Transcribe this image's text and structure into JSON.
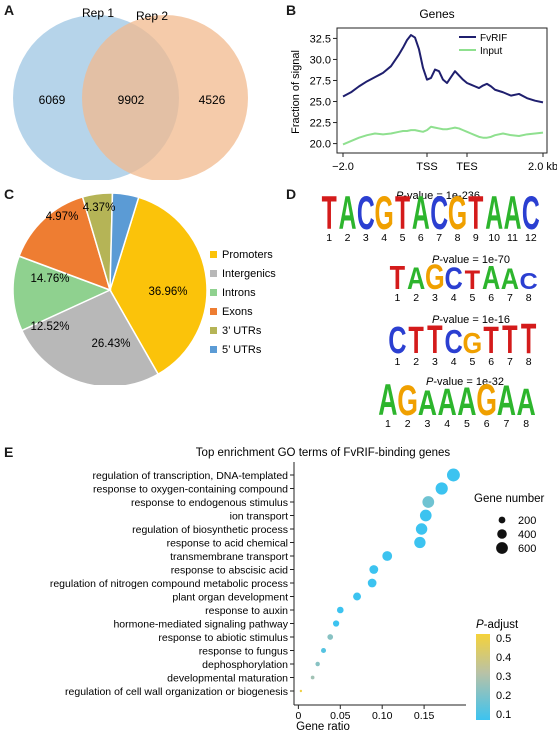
{
  "panels": {
    "a": "A",
    "b": "B",
    "c": "C",
    "d": "D",
    "e": "E"
  },
  "venn": {
    "label1": "Rep 1",
    "label2": "Rep 2",
    "only1": "6069",
    "both": "9902",
    "only2": "4526",
    "color1": "#a9cce6",
    "color2": "#f2b98d"
  },
  "chart_data": [
    {
      "type": "area",
      "subtype": "venn",
      "sets": [
        "Rep 1",
        "Rep 2"
      ],
      "counts": {
        "Rep 1 only": 6069,
        "Rep 1 & Rep 2": 9902,
        "Rep 2 only": 4526
      }
    },
    {
      "type": "line",
      "title": "Genes",
      "ylabel": "Fraction of signal",
      "xticks": [
        "−2.0",
        "TSS",
        "TES",
        "2.0 kb"
      ],
      "yticks": [
        20.0,
        22.5,
        25.0,
        27.5,
        30.0,
        32.5
      ],
      "ylim": [
        19.0,
        33.5
      ],
      "legend_position": "top-right",
      "x": [
        0,
        0.04,
        0.08,
        0.12,
        0.16,
        0.2,
        0.24,
        0.28,
        0.3,
        0.32,
        0.34,
        0.36,
        0.38,
        0.4,
        0.42,
        0.44,
        0.46,
        0.48,
        0.5,
        0.52,
        0.54,
        0.56,
        0.58,
        0.6,
        0.62,
        0.64,
        0.66,
        0.68,
        0.7,
        0.72,
        0.74,
        0.76,
        0.8,
        0.84,
        0.88,
        0.92,
        0.96,
        1.0
      ],
      "x_note": "",
      "series": [
        {
          "name": "FvRIF",
          "color": "#1f1f6e",
          "values": [
            25.6,
            26.1,
            26.8,
            27.4,
            27.9,
            28.4,
            29.2,
            30.6,
            31.4,
            32.3,
            32.9,
            32.6,
            31.2,
            29.0,
            27.6,
            27.8,
            28.8,
            28.6,
            27.6,
            27.2,
            27.9,
            28.6,
            28.1,
            27.6,
            27.2,
            27.0,
            26.8,
            26.6,
            26.9,
            27.1,
            26.8,
            26.4,
            26.1,
            25.7,
            25.9,
            25.4,
            25.1,
            24.9
          ]
        },
        {
          "name": "Input",
          "color": "#8fe08f",
          "values": [
            19.9,
            20.3,
            20.7,
            21.0,
            21.2,
            21.1,
            21.2,
            21.4,
            21.5,
            21.5,
            21.6,
            21.6,
            21.5,
            21.4,
            21.6,
            22.0,
            21.9,
            21.8,
            21.7,
            21.7,
            21.8,
            21.9,
            21.8,
            21.6,
            21.4,
            21.2,
            21.0,
            20.8,
            20.7,
            20.7,
            20.8,
            21.0,
            21.2,
            21.0,
            20.9,
            21.1,
            21.2,
            21.3
          ]
        }
      ]
    },
    {
      "type": "pie",
      "slices": [
        {
          "label": "Promoters",
          "value": 36.96,
          "text": "36.96%",
          "color": "#fbc30a"
        },
        {
          "label": "Intergenics",
          "value": 26.43,
          "text": "26.43%",
          "color": "#b8b8b8"
        },
        {
          "label": "Introns",
          "value": 12.52,
          "text": "12.52%",
          "color": "#8fd18f"
        },
        {
          "label": "Exons",
          "value": 14.76,
          "text": "14.76%",
          "color": "#ee7d32"
        },
        {
          "label": "3’ UTRs",
          "value": 4.97,
          "text": "4.97%",
          "color": "#b5b456"
        },
        {
          "label": "5’ UTRs",
          "value": 4.37,
          "text": "4.37%",
          "color": "#5b9bd5"
        }
      ],
      "legend_position": "right"
    },
    {
      "type": "scatter",
      "title": "Top enrichment GO terms of FvRIF-binding genes",
      "xlabel": "Gene ratio",
      "xlim": [
        -0.01,
        0.2
      ],
      "xticks": [
        0,
        0.05,
        0.1,
        0.15
      ],
      "xtick_labels": [
        "0",
        "0.05",
        "0.10",
        "0.15"
      ],
      "size_legend": {
        "title": "Gene number",
        "values": [
          200,
          400,
          600
        ]
      },
      "color_legend": {
        "title": "P-adjust",
        "title_prefix": "P",
        "title_suffix": "-adjust",
        "ticks": [
          "0.5",
          "0.4",
          "0.3",
          "0.2",
          "0.1"
        ],
        "range": [
          0.05,
          0.5
        ]
      },
      "points": [
        {
          "term": "regulation of transcription, DNA-templated",
          "ratio": 0.185,
          "count": 720,
          "padj": 0.05
        },
        {
          "term": "response to oxygen-containing compound",
          "ratio": 0.171,
          "count": 650,
          "padj": 0.05
        },
        {
          "term": "response to endogenous stimulus",
          "ratio": 0.155,
          "count": 600,
          "padj": 0.15
        },
        {
          "term": "ion transport",
          "ratio": 0.152,
          "count": 590,
          "padj": 0.05
        },
        {
          "term": "regulation of biosynthetic process",
          "ratio": 0.147,
          "count": 570,
          "padj": 0.05
        },
        {
          "term": "response to acid chemical",
          "ratio": 0.145,
          "count": 560,
          "padj": 0.05
        },
        {
          "term": "transmembrane transport",
          "ratio": 0.106,
          "count": 420,
          "padj": 0.05
        },
        {
          "term": "response to abscisic acid",
          "ratio": 0.09,
          "count": 340,
          "padj": 0.05
        },
        {
          "term": "regulation of nitrogen compound metabolic process",
          "ratio": 0.088,
          "count": 330,
          "padj": 0.05
        },
        {
          "term": "plant organ development",
          "ratio": 0.07,
          "count": 270,
          "padj": 0.05
        },
        {
          "term": "response to auxin",
          "ratio": 0.05,
          "count": 190,
          "padj": 0.05
        },
        {
          "term": "hormone-mediated signaling pathway",
          "ratio": 0.045,
          "count": 170,
          "padj": 0.05
        },
        {
          "term": "response to abiotic stimulus",
          "ratio": 0.038,
          "count": 140,
          "padj": 0.2
        },
        {
          "term": "response to fungus",
          "ratio": 0.03,
          "count": 110,
          "padj": 0.1
        },
        {
          "term": "dephosphorylation",
          "ratio": 0.023,
          "count": 85,
          "padj": 0.2
        },
        {
          "term": "developmental maturation",
          "ratio": 0.017,
          "count": 60,
          "padj": 0.25
        },
        {
          "term": "regulation of cell wall organization or biogenesis",
          "ratio": 0.003,
          "count": 12,
          "padj": 0.48
        }
      ]
    }
  ],
  "motifs": {
    "p_label": "P",
    "colors": {
      "A": "#2db52d",
      "C": "#2b3fd1",
      "G": "#f0a000",
      "T": "#d41b1b"
    },
    "items": [
      {
        "pvalue": "-value = 1e-236",
        "seq": [
          "T",
          "A",
          "C",
          "G",
          "T",
          "A",
          "C",
          "G",
          "T",
          "A",
          "A",
          "C"
        ],
        "heights": [
          1,
          1,
          1,
          1,
          1,
          1,
          1,
          1,
          1,
          1,
          1,
          1
        ],
        "positions": [
          "1",
          "2",
          "3",
          "4",
          "5",
          "6",
          "7",
          "8",
          "9",
          "10",
          "11",
          "12"
        ]
      },
      {
        "pvalue": "-value = 1e-70",
        "seq": [
          "T",
          "A",
          "G",
          "C",
          "T",
          "A",
          "A",
          "C"
        ],
        "heights": [
          0.8,
          0.75,
          0.85,
          0.75,
          0.65,
          0.8,
          0.7,
          0.55
        ],
        "positions": [
          "1",
          "2",
          "3",
          "4",
          "5",
          "6",
          "7",
          "8"
        ]
      },
      {
        "pvalue": "-value = 1e-16",
        "seq": [
          "C",
          "T",
          "T",
          "C",
          "G",
          "T",
          "T",
          "T"
        ],
        "heights": [
          0.8,
          0.8,
          0.85,
          0.7,
          0.6,
          0.8,
          0.85,
          0.9
        ],
        "positions": [
          "1",
          "2",
          "3",
          "4",
          "5",
          "6",
          "7",
          "8"
        ]
      },
      {
        "pvalue": "-value = 1e-32",
        "seq": [
          "A",
          "G",
          "A",
          "A",
          "A",
          "G",
          "A",
          "A"
        ],
        "heights": [
          0.95,
          0.9,
          0.75,
          0.8,
          0.85,
          0.95,
          0.9,
          0.8
        ],
        "positions": [
          "1",
          "2",
          "3",
          "4",
          "5",
          "6",
          "7",
          "8"
        ]
      }
    ]
  }
}
